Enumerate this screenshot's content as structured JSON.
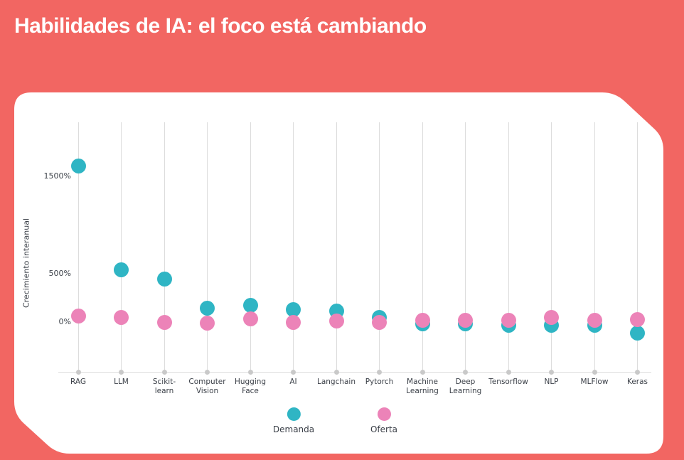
{
  "title": "Habilidades de IA: el foco está cambiando",
  "colors": {
    "background": "#F26662",
    "card": "#FFFFFF",
    "demanda": "#2FB5C4",
    "oferta": "#EC83B8",
    "text": "#3A3F47",
    "grid_line": "#DCDCDC",
    "axis_dot": "#C9C9C9"
  },
  "chart_data": {
    "type": "scatter",
    "title": "Habilidades de IA: el foco está cambiando",
    "ylabel": "Crecimiento interanual",
    "xlabel": "",
    "categories": [
      "RAG",
      "LLM",
      "Scikit-learn",
      "Computer Vision",
      "Hugging Face",
      "AI",
      "Langchain",
      "Pytorch",
      "Machine Learning",
      "Deep Learning",
      "Tensorflow",
      "NLP",
      "MLFlow",
      "Keras"
    ],
    "category_label_lines": [
      [
        "RAG"
      ],
      [
        "LLM"
      ],
      [
        "Scikit-",
        "learn"
      ],
      [
        "Computer",
        "Vision"
      ],
      [
        "Hugging",
        "Face"
      ],
      [
        "AI"
      ],
      [
        "Langchain"
      ],
      [
        "Pytorch"
      ],
      [
        "Machine",
        "Learning"
      ],
      [
        "Deep",
        "Learning"
      ],
      [
        "Tensorflow"
      ],
      [
        "NLP"
      ],
      [
        "MLFlow"
      ],
      [
        "Keras"
      ]
    ],
    "series": [
      {
        "name": "Demanda",
        "values": [
          1600,
          540,
          440,
          145,
          170,
          125,
          110,
          50,
          -20,
          -20,
          -35,
          -30,
          -35,
          -115
        ]
      },
      {
        "name": "Oferta",
        "values": [
          60,
          50,
          0,
          -10,
          30,
          0,
          10,
          0,
          15,
          20,
          20,
          45,
          20,
          25
        ]
      }
    ],
    "yticks": {
      "labels": [
        "0%",
        "500%",
        "1500%"
      ],
      "values": [
        0,
        500,
        1500
      ]
    },
    "ylim": [
      -150,
      1750
    ],
    "grid": "vertical-category-lines",
    "legend_position": "bottom-center",
    "unit": "%"
  }
}
